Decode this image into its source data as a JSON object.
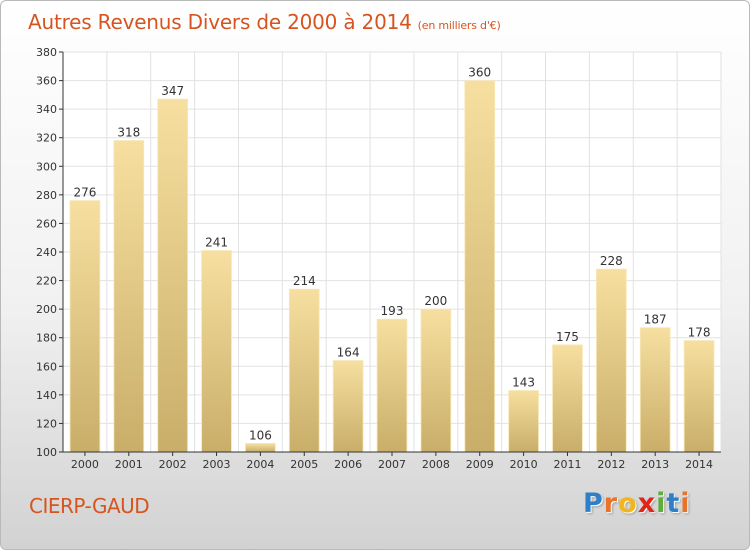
{
  "header": {
    "title": "Autres Revenus Divers de 2000 à 2014",
    "unit": "(en milliers d'€)"
  },
  "footer": {
    "place": "CIERP-GAUD",
    "logo": "Proxiti",
    "logo_colors": [
      "#2f7fc8",
      "#e8732a",
      "#f2b51d",
      "#e2231a",
      "#5fae3a",
      "#2f7fc8",
      "#e8732a"
    ]
  },
  "colors": {
    "title": "#d6551f",
    "bar_light": "#f6dfa0",
    "bar_dark": "#c9ae69",
    "grid": "#e2e2e2",
    "axis": "#333333"
  },
  "chart_data": {
    "type": "bar",
    "categories": [
      "2000",
      "2001",
      "2002",
      "2003",
      "2004",
      "2005",
      "2006",
      "2007",
      "2008",
      "2009",
      "2010",
      "2011",
      "2012",
      "2013",
      "2014"
    ],
    "values": [
      276,
      318,
      347,
      241,
      106,
      214,
      164,
      193,
      200,
      360,
      143,
      175,
      228,
      187,
      178
    ],
    "title": "Autres Revenus Divers de 2000 à 2014",
    "ylim": [
      100,
      380
    ],
    "yticks": [
      100,
      120,
      140,
      160,
      180,
      200,
      220,
      240,
      260,
      280,
      300,
      320,
      340,
      360,
      380
    ],
    "grid": true,
    "data_labels": true
  }
}
